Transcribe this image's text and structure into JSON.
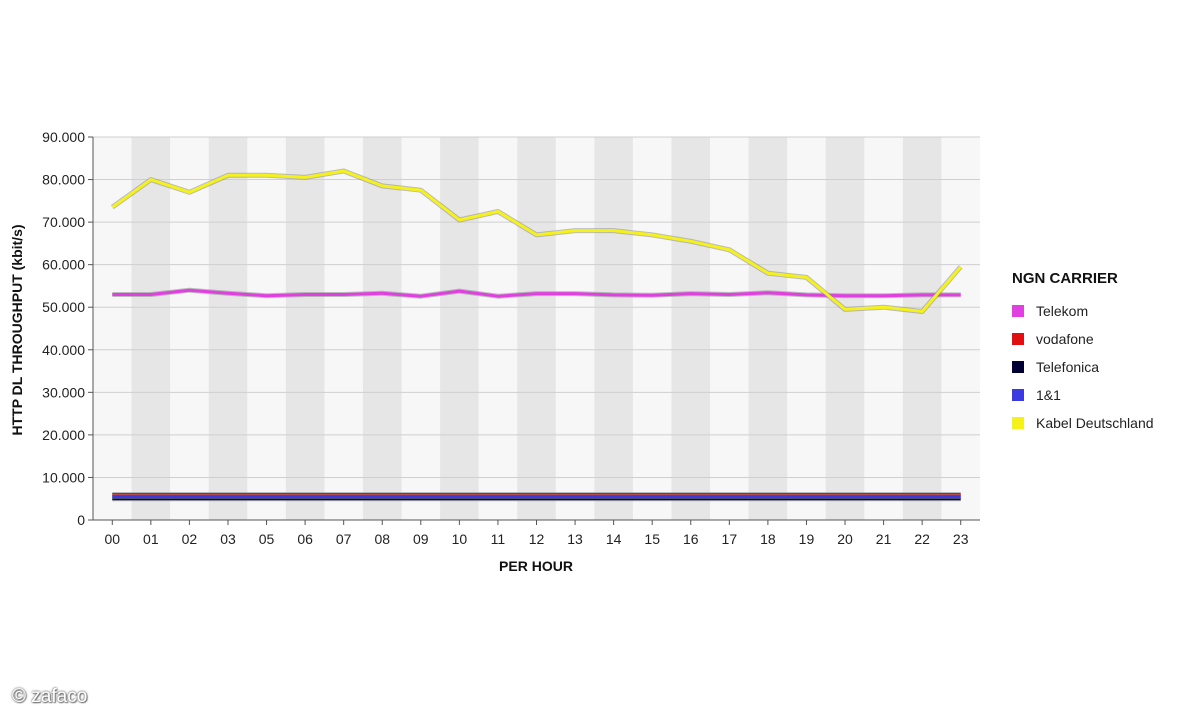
{
  "watermark": "© zafaco",
  "chart_data": {
    "type": "line",
    "xlabel": "PER HOUR",
    "ylabel": "HTTP DL THROUGHPUT (kbit/s)",
    "ylim": [
      0,
      90000
    ],
    "y_ticks": [
      "0",
      "10.000",
      "20.000",
      "30.000",
      "40.000",
      "50.000",
      "60.000",
      "70.000",
      "80.000",
      "90.000"
    ],
    "categories": [
      "00",
      "01",
      "02",
      "03",
      "05",
      "06",
      "07",
      "08",
      "09",
      "10",
      "11",
      "12",
      "13",
      "14",
      "15",
      "16",
      "17",
      "18",
      "19",
      "20",
      "21",
      "22",
      "23"
    ],
    "grid": true,
    "legend_title": "NGN CARRIER",
    "legend_position": "right",
    "series": [
      {
        "name": "Telekom",
        "color": "#e040e0",
        "values": [
          53000,
          53000,
          54000,
          53300,
          52700,
          53000,
          53000,
          53300,
          52600,
          53800,
          52600,
          53200,
          53200,
          52900,
          52800,
          53200,
          53000,
          53400,
          52900,
          52700,
          52700,
          52900,
          52900
        ]
      },
      {
        "name": "vodafone",
        "color": "#e01010",
        "values": [
          6000,
          6000,
          6000,
          6000,
          6000,
          6000,
          6000,
          6000,
          6000,
          6000,
          6000,
          6000,
          6000,
          6000,
          6000,
          6000,
          6000,
          6000,
          6000,
          6000,
          6000,
          6000,
          6000
        ]
      },
      {
        "name": "Telefonica",
        "color": "#000033",
        "values": [
          5000,
          5000,
          5000,
          5000,
          5000,
          5000,
          5000,
          5000,
          5000,
          5000,
          5000,
          5000,
          5000,
          5000,
          5000,
          5000,
          5000,
          5000,
          5000,
          5000,
          5000,
          5000,
          5000
        ]
      },
      {
        "name": "1&1",
        "color": "#3a3ae0",
        "values": [
          5500,
          5500,
          5500,
          5500,
          5500,
          5500,
          5500,
          5500,
          5500,
          5500,
          5500,
          5500,
          5500,
          5500,
          5500,
          5500,
          5500,
          5500,
          5500,
          5500,
          5500,
          5500,
          5500
        ]
      },
      {
        "name": "Kabel Deutschland",
        "color": "#f5f21a",
        "values": [
          73500,
          80000,
          77000,
          81000,
          81000,
          80500,
          82000,
          78500,
          77500,
          70500,
          72500,
          67000,
          68000,
          68000,
          67000,
          65500,
          63500,
          58000,
          57000,
          49500,
          50000,
          49000,
          59500
        ]
      }
    ]
  }
}
